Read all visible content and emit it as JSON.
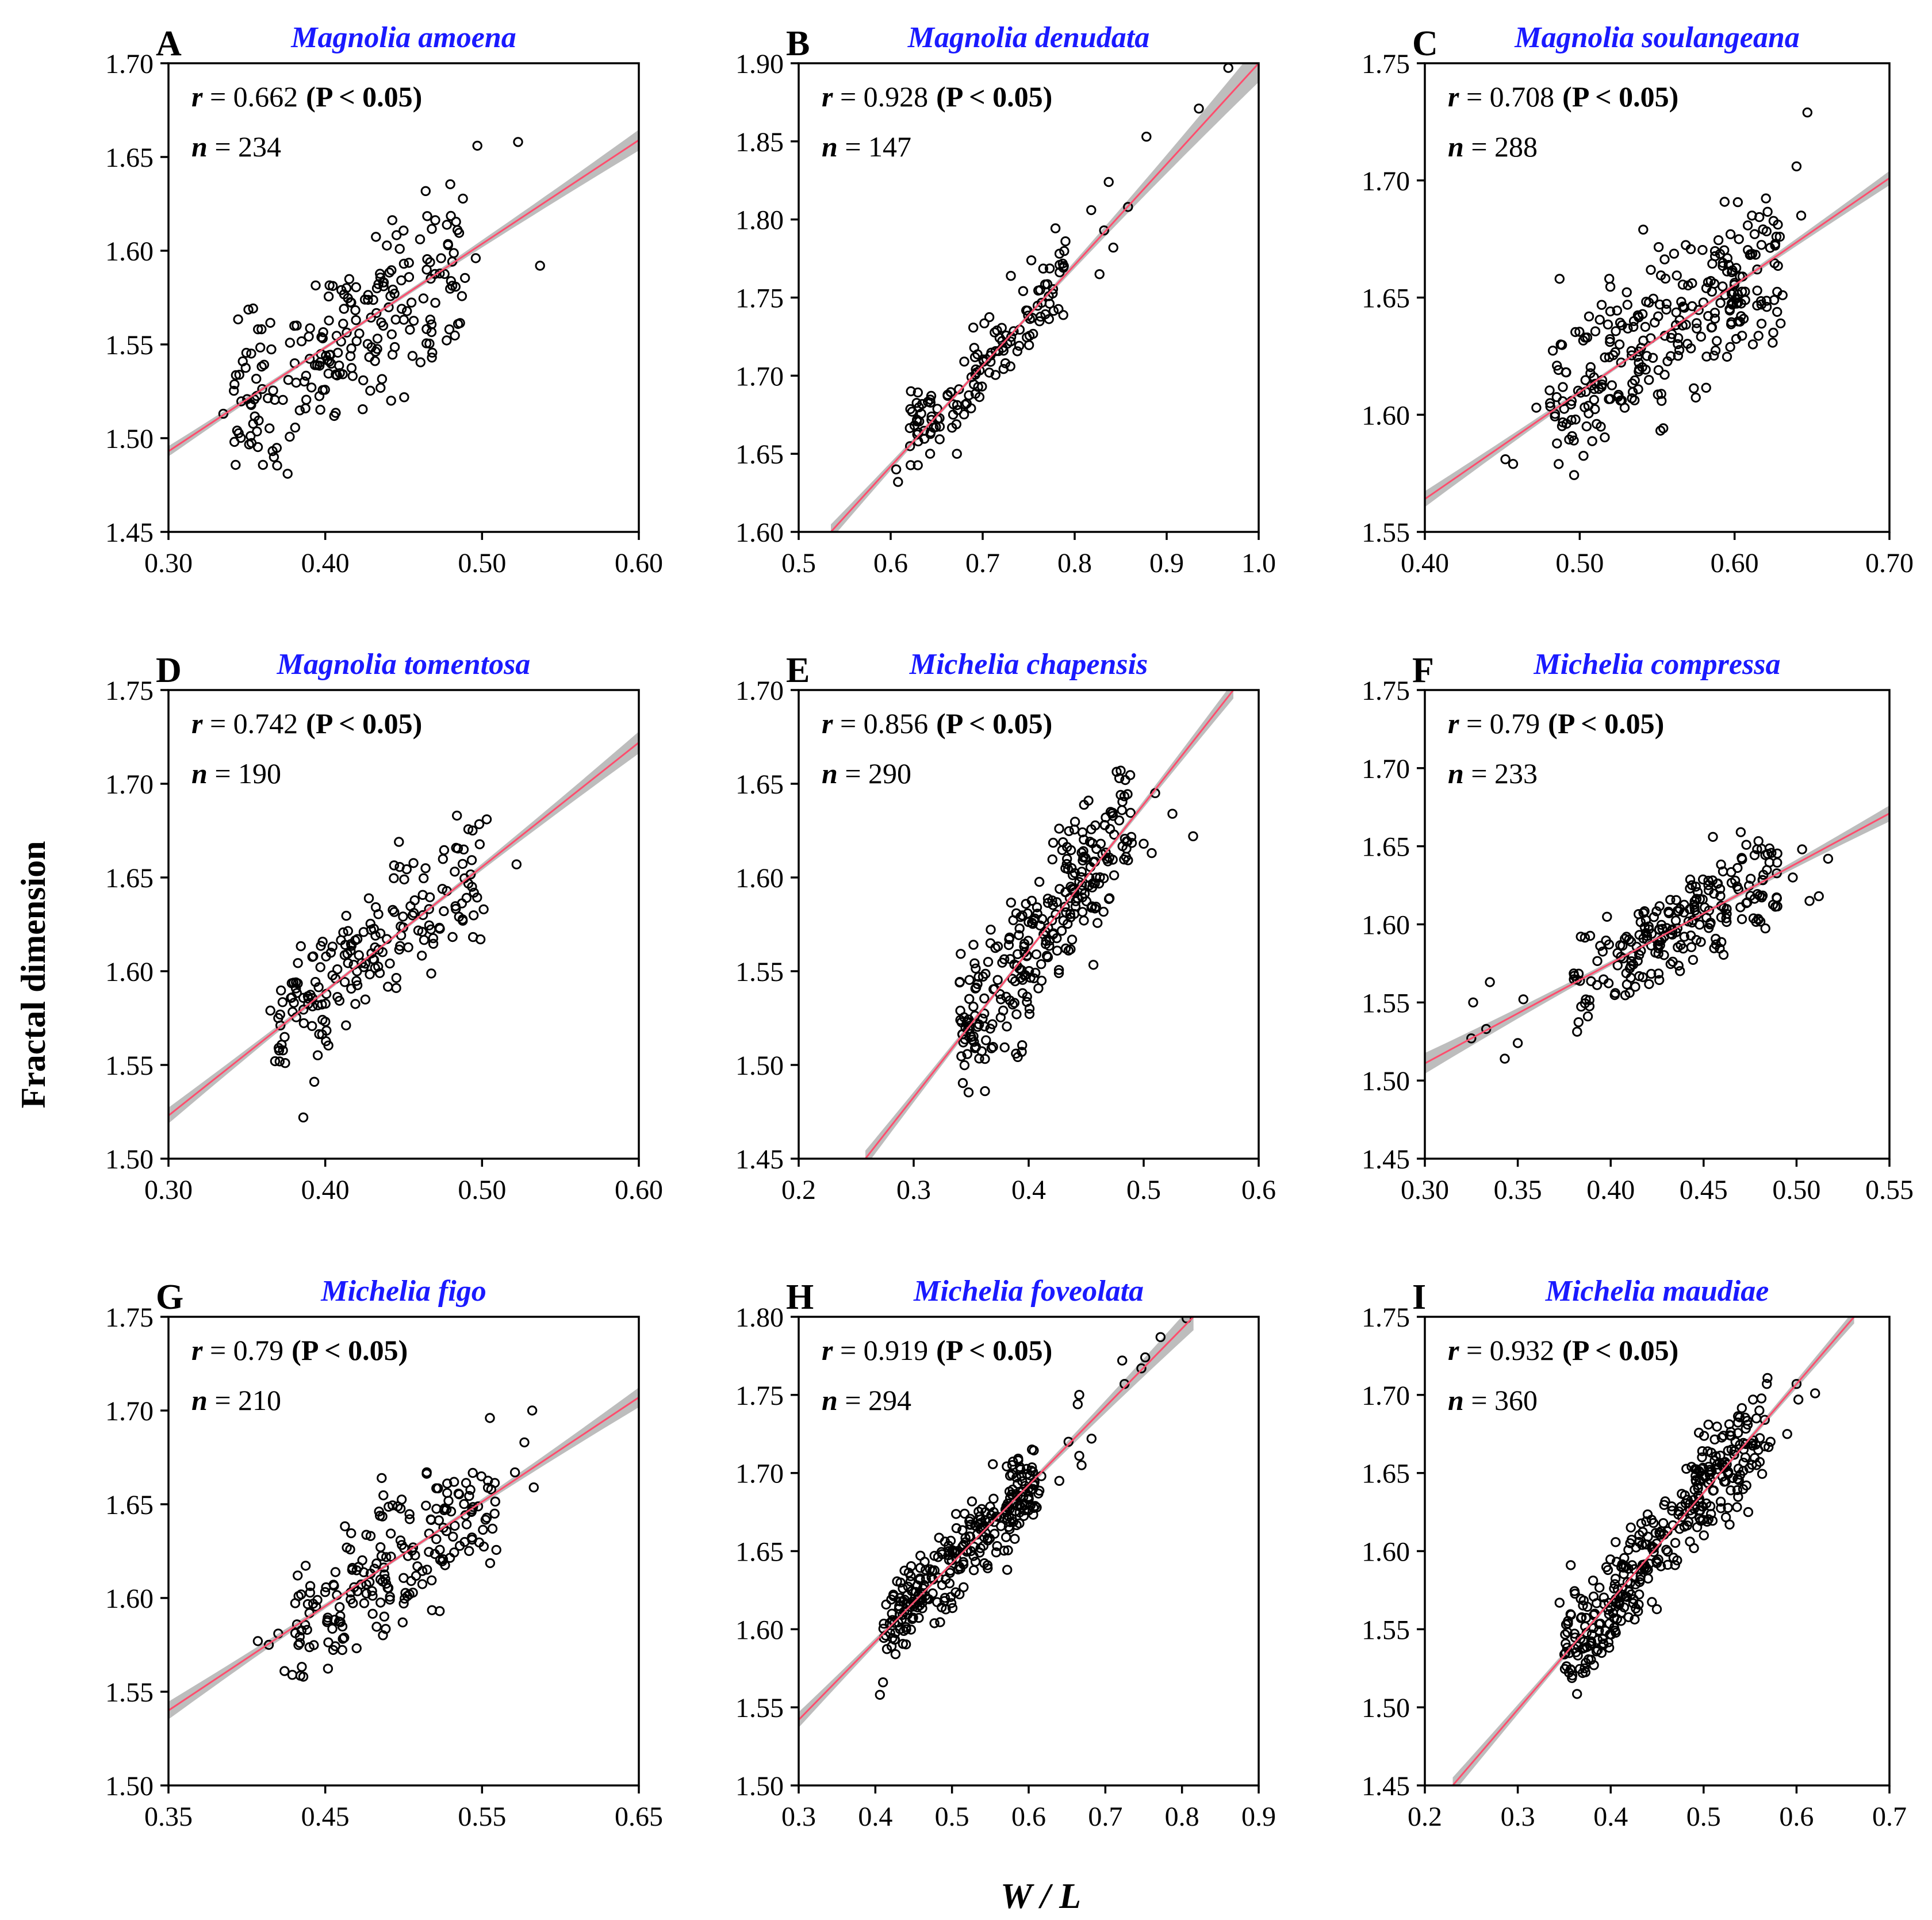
{
  "figure": {
    "ylabel": "Fractal dimension",
    "xlabel": "W / L"
  },
  "colors": {
    "title": "#1a1aff",
    "fit_line": "#ff4d6d",
    "ci_band": "#bdbdbd",
    "point": "#000000"
  },
  "chart_data": [
    {
      "type": "scatter",
      "letter": "A",
      "title": "Magnolia amoena",
      "r": "0.662",
      "p": "(P < 0.05)",
      "n": "234",
      "xlim": [
        0.3,
        0.6
      ],
      "ylim": [
        1.45,
        1.7
      ],
      "xticks": [
        0.3,
        0.4,
        0.5,
        0.6
      ],
      "xtick_labels": [
        "0.30",
        "0.40",
        "0.50",
        "0.60"
      ],
      "yticks": [
        1.45,
        1.5,
        1.55,
        1.6,
        1.65,
        1.7
      ],
      "ytick_labels": [
        "1.45",
        "1.50",
        "1.55",
        "1.60",
        "1.65",
        "1.70"
      ],
      "fit": {
        "x": [
          0.3,
          0.6
        ],
        "y": [
          1.493,
          1.659
        ]
      },
      "cloud": {
        "xmin": 0.34,
        "xmax": 0.49,
        "sd": 0.022,
        "count": 220
      },
      "outliers": [
        [
          0.335,
          1.513
        ],
        [
          0.376,
          1.481
        ],
        [
          0.497,
          1.656
        ],
        [
          0.523,
          1.658
        ],
        [
          0.537,
          1.592
        ],
        [
          0.496,
          1.596
        ],
        [
          0.442,
          1.52
        ],
        [
          0.468,
          1.543
        ]
      ]
    },
    {
      "type": "scatter",
      "letter": "B",
      "title": "Magnolia denudata",
      "r": "0.928",
      "p": "(P < 0.05)",
      "n": "147",
      "xlim": [
        0.5,
        1.0
      ],
      "ylim": [
        1.6,
        1.9
      ],
      "xticks": [
        0.5,
        0.6,
        0.7,
        0.8,
        0.9,
        1.0
      ],
      "xtick_labels": [
        "0.5",
        "0.6",
        "0.7",
        "0.8",
        "0.9",
        "1.0"
      ],
      "yticks": [
        1.6,
        1.65,
        1.7,
        1.75,
        1.8,
        1.85,
        1.9
      ],
      "ytick_labels": [
        "1.60",
        "1.65",
        "1.70",
        "1.75",
        "1.80",
        "1.85",
        "1.90"
      ],
      "fit": {
        "x": [
          0.535,
          1.0
        ],
        "y": [
          1.6,
          1.9
        ]
      },
      "cloud": {
        "xmin": 0.62,
        "xmax": 0.79,
        "sd": 0.013,
        "count": 135
      },
      "outliers": [
        [
          0.606,
          1.64
        ],
        [
          0.608,
          1.632
        ],
        [
          0.622,
          1.69
        ],
        [
          0.672,
          1.65
        ],
        [
          0.79,
          1.786
        ],
        [
          0.818,
          1.806
        ],
        [
          0.837,
          1.824
        ],
        [
          0.832,
          1.793
        ],
        [
          0.842,
          1.782
        ],
        [
          0.858,
          1.808
        ],
        [
          0.878,
          1.853
        ],
        [
          0.935,
          1.871
        ],
        [
          0.967,
          1.897
        ],
        [
          0.827,
          1.765
        ]
      ]
    },
    {
      "type": "scatter",
      "letter": "C",
      "title": "Magnolia soulangeana",
      "r": "0.708",
      "p": "(P < 0.05)",
      "n": "288",
      "xlim": [
        0.4,
        0.7
      ],
      "ylim": [
        1.55,
        1.75
      ],
      "xticks": [
        0.4,
        0.5,
        0.6,
        0.7
      ],
      "xtick_labels": [
        "0.40",
        "0.50",
        "0.60",
        "0.70"
      ],
      "yticks": [
        1.55,
        1.6,
        1.65,
        1.7,
        1.75
      ],
      "ytick_labels": [
        "1.55",
        "1.60",
        "1.65",
        "1.70",
        "1.75"
      ],
      "fit": {
        "x": [
          0.4,
          0.7
        ],
        "y": [
          1.564,
          1.701
        ]
      },
      "cloud": {
        "xmin": 0.48,
        "xmax": 0.63,
        "sd": 0.016,
        "count": 275
      },
      "outliers": [
        [
          0.452,
          1.581
        ],
        [
          0.457,
          1.579
        ],
        [
          0.472,
          1.603
        ],
        [
          0.647,
          1.729
        ],
        [
          0.64,
          1.706
        ],
        [
          0.643,
          1.685
        ],
        [
          0.627,
          1.676
        ],
        [
          0.631,
          1.651
        ],
        [
          0.625,
          1.635
        ],
        [
          0.541,
          1.679
        ],
        [
          0.487,
          1.658
        ]
      ]
    },
    {
      "type": "scatter",
      "letter": "D",
      "title": "Magnolia tomentosa",
      "r": "0.742",
      "p": "(P < 0.05)",
      "n": "190",
      "xlim": [
        0.3,
        0.6
      ],
      "ylim": [
        1.5,
        1.75
      ],
      "xticks": [
        0.3,
        0.4,
        0.5,
        0.6
      ],
      "xtick_labels": [
        "0.30",
        "0.40",
        "0.50",
        "0.60"
      ],
      "yticks": [
        1.5,
        1.55,
        1.6,
        1.65,
        1.7,
        1.75
      ],
      "ytick_labels": [
        "1.50",
        "1.55",
        "1.60",
        "1.65",
        "1.70",
        "1.75"
      ],
      "fit": {
        "x": [
          0.3,
          0.6
        ],
        "y": [
          1.523,
          1.722
        ]
      },
      "cloud": {
        "xmin": 0.37,
        "xmax": 0.5,
        "sd": 0.017,
        "count": 178
      },
      "outliers": [
        [
          0.386,
          1.522
        ],
        [
          0.393,
          1.541
        ],
        [
          0.365,
          1.579
        ],
        [
          0.37,
          1.575
        ],
        [
          0.368,
          1.552
        ],
        [
          0.484,
          1.683
        ],
        [
          0.503,
          1.681
        ],
        [
          0.522,
          1.657
        ],
        [
          0.501,
          1.633
        ],
        [
          0.499,
          1.617
        ],
        [
          0.447,
          1.669
        ]
      ]
    },
    {
      "type": "scatter",
      "letter": "E",
      "title": "Michelia chapensis",
      "r": "0.856",
      "p": "(P < 0.05)",
      "n": "290",
      "xlim": [
        0.2,
        0.6
      ],
      "ylim": [
        1.45,
        1.7
      ],
      "xticks": [
        0.2,
        0.3,
        0.4,
        0.5,
        0.6
      ],
      "xtick_labels": [
        "0.2",
        "0.3",
        "0.4",
        "0.5",
        "0.6"
      ],
      "yticks": [
        1.45,
        1.5,
        1.55,
        1.6,
        1.65,
        1.7
      ],
      "ytick_labels": [
        "1.45",
        "1.50",
        "1.55",
        "1.60",
        "1.65",
        "1.70"
      ],
      "fit": {
        "x": [
          0.258,
          0.578
        ],
        "y": [
          1.45,
          1.7
        ]
      },
      "cloud": {
        "xmin": 0.34,
        "xmax": 0.49,
        "sd": 0.019,
        "count": 276
      },
      "outliers": [
        [
          0.362,
          1.486
        ],
        [
          0.394,
          1.507
        ],
        [
          0.543,
          1.622
        ],
        [
          0.525,
          1.634
        ],
        [
          0.51,
          1.645
        ],
        [
          0.48,
          1.657
        ],
        [
          0.484,
          1.652
        ],
        [
          0.452,
          1.641
        ],
        [
          0.507,
          1.613
        ],
        [
          0.5,
          1.618
        ],
        [
          0.467,
          1.632
        ],
        [
          0.34,
          1.544
        ],
        [
          0.345,
          1.52
        ]
      ]
    },
    {
      "type": "scatter",
      "letter": "F",
      "title": "Michelia compressa",
      "r": "0.79",
      "p": "(P < 0.05)",
      "n": "233",
      "xlim": [
        0.3,
        0.55
      ],
      "ylim": [
        1.45,
        1.75
      ],
      "xticks": [
        0.3,
        0.35,
        0.4,
        0.45,
        0.5,
        0.55
      ],
      "xtick_labels": [
        "0.30",
        "0.35",
        "0.40",
        "0.45",
        "0.50",
        "0.55"
      ],
      "yticks": [
        1.45,
        1.5,
        1.55,
        1.6,
        1.65,
        1.7,
        1.75
      ],
      "ytick_labels": [
        "1.45",
        "1.50",
        "1.55",
        "1.60",
        "1.65",
        "1.70",
        "1.75"
      ],
      "fit": {
        "x": [
          0.3,
          0.55
        ],
        "y": [
          1.511,
          1.671
        ]
      },
      "cloud": {
        "xmin": 0.38,
        "xmax": 0.49,
        "sd": 0.015,
        "count": 218
      },
      "outliers": [
        [
          0.325,
          1.527
        ],
        [
          0.326,
          1.55
        ],
        [
          0.333,
          1.533
        ],
        [
          0.335,
          1.563
        ],
        [
          0.343,
          1.514
        ],
        [
          0.353,
          1.552
        ],
        [
          0.35,
          1.524
        ],
        [
          0.503,
          1.648
        ],
        [
          0.517,
          1.642
        ],
        [
          0.507,
          1.615
        ],
        [
          0.512,
          1.618
        ],
        [
          0.498,
          1.63
        ],
        [
          0.47,
          1.659
        ],
        [
          0.455,
          1.656
        ]
      ]
    },
    {
      "type": "scatter",
      "letter": "G",
      "title": "Michelia figo",
      "r": "0.79",
      "p": "(P < 0.05)",
      "n": "210",
      "xlim": [
        0.35,
        0.65
      ],
      "ylim": [
        1.5,
        1.75
      ],
      "xticks": [
        0.35,
        0.45,
        0.55,
        0.65
      ],
      "xtick_labels": [
        "0.35",
        "0.45",
        "0.55",
        "0.65"
      ],
      "yticks": [
        1.5,
        1.55,
        1.6,
        1.65,
        1.7,
        1.75
      ],
      "ytick_labels": [
        "1.50",
        "1.55",
        "1.60",
        "1.65",
        "1.70",
        "1.75"
      ],
      "fit": {
        "x": [
          0.35,
          0.65
        ],
        "y": [
          1.54,
          1.707
        ]
      },
      "cloud": {
        "xmin": 0.43,
        "xmax": 0.56,
        "sd": 0.017,
        "count": 196
      },
      "outliers": [
        [
          0.407,
          1.577
        ],
        [
          0.414,
          1.575
        ],
        [
          0.42,
          1.581
        ],
        [
          0.424,
          1.561
        ],
        [
          0.429,
          1.559
        ],
        [
          0.436,
          1.558
        ],
        [
          0.582,
          1.7
        ],
        [
          0.555,
          1.696
        ],
        [
          0.577,
          1.683
        ],
        [
          0.583,
          1.659
        ],
        [
          0.571,
          1.667
        ],
        [
          0.523,
          1.593
        ],
        [
          0.486,
          1.664
        ]
      ]
    },
    {
      "type": "scatter",
      "letter": "H",
      "title": "Michelia foveolata",
      "r": "0.919",
      "p": "(P < 0.05)",
      "n": "294",
      "xlim": [
        0.3,
        0.9
      ],
      "ylim": [
        1.5,
        1.8
      ],
      "xticks": [
        0.3,
        0.4,
        0.5,
        0.6,
        0.7,
        0.8,
        0.9
      ],
      "xtick_labels": [
        "0.3",
        "0.4",
        "0.5",
        "0.6",
        "0.7",
        "0.8",
        "0.9"
      ],
      "yticks": [
        1.5,
        1.55,
        1.6,
        1.65,
        1.7,
        1.75,
        1.8
      ],
      "ytick_labels": [
        "1.50",
        "1.55",
        "1.60",
        "1.65",
        "1.70",
        "1.75",
        "1.80"
      ],
      "fit": {
        "x": [
          0.3,
          0.815
        ],
        "y": [
          1.542,
          1.8
        ]
      },
      "cloud": {
        "xmin": 0.41,
        "xmax": 0.62,
        "sd": 0.013,
        "count": 276
      },
      "outliers": [
        [
          0.406,
          1.558
        ],
        [
          0.41,
          1.566
        ],
        [
          0.572,
          1.638
        ],
        [
          0.666,
          1.75
        ],
        [
          0.664,
          1.744
        ],
        [
          0.666,
          1.711
        ],
        [
          0.669,
          1.705
        ],
        [
          0.682,
          1.722
        ],
        [
          0.722,
          1.772
        ],
        [
          0.725,
          1.757
        ],
        [
          0.747,
          1.767
        ],
        [
          0.752,
          1.774
        ],
        [
          0.772,
          1.787
        ],
        [
          0.806,
          1.799
        ],
        [
          0.64,
          1.695
        ],
        [
          0.652,
          1.72
        ]
      ]
    },
    {
      "type": "scatter",
      "letter": "I",
      "title": "Michelia maudiae",
      "r": "0.932",
      "p": "(P < 0.05)",
      "n": "360",
      "xlim": [
        0.2,
        0.7
      ],
      "ylim": [
        1.45,
        1.75
      ],
      "xticks": [
        0.2,
        0.3,
        0.4,
        0.5,
        0.6,
        0.7
      ],
      "xtick_labels": [
        "0.2",
        "0.3",
        "0.4",
        "0.5",
        "0.6",
        "0.7"
      ],
      "yticks": [
        1.45,
        1.5,
        1.55,
        1.6,
        1.65,
        1.7,
        1.75
      ],
      "ytick_labels": [
        "1.45",
        "1.50",
        "1.55",
        "1.60",
        "1.65",
        "1.70",
        "1.75"
      ],
      "fit": {
        "x": [
          0.23,
          0.662
        ],
        "y": [
          1.45,
          1.75
        ]
      },
      "cloud": {
        "xmin": 0.35,
        "xmax": 0.57,
        "sd": 0.016,
        "count": 344
      },
      "outliers": [
        [
          0.345,
          1.567
        ],
        [
          0.352,
          1.553
        ],
        [
          0.357,
          1.591
        ],
        [
          0.62,
          1.701
        ],
        [
          0.6,
          1.707
        ],
        [
          0.602,
          1.697
        ],
        [
          0.568,
          1.707
        ],
        [
          0.572,
          1.67
        ],
        [
          0.53,
          1.665
        ],
        [
          0.548,
          1.625
        ],
        [
          0.528,
          1.617
        ],
        [
          0.382,
          1.527
        ],
        [
          0.372,
          1.525
        ],
        [
          0.59,
          1.675
        ],
        [
          0.56,
          1.69
        ],
        [
          0.545,
          1.66
        ]
      ]
    }
  ]
}
